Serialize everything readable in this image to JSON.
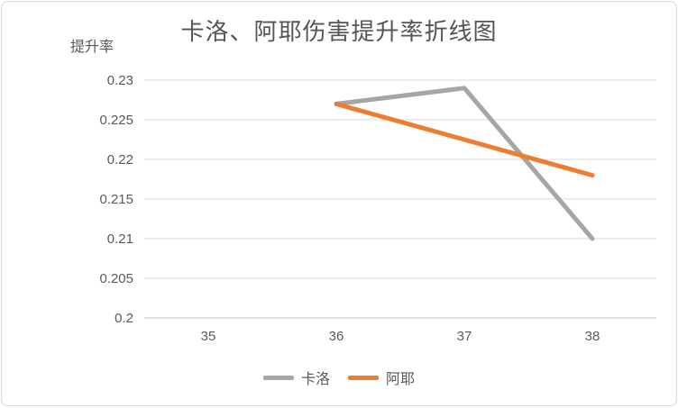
{
  "chart": {
    "colors": {
      "grid": "#d9d9d9",
      "axis": "#bfbfbf",
      "tick_text": "#595959",
      "title_text": "#555555",
      "border": "#d9d9d9",
      "background": "#ffffff"
    }
  },
  "chart_data": {
    "type": "line",
    "title": "卡洛、阿耶伤害提升率折线图",
    "ylabel": "提升率",
    "xlabel": "",
    "xticks": [
      35,
      36,
      37,
      38
    ],
    "yticks": [
      0.2,
      0.205,
      0.21,
      0.215,
      0.22,
      0.225,
      0.23
    ],
    "ylim": [
      0.2,
      0.23
    ],
    "grid": true,
    "legend_position": "bottom",
    "series": [
      {
        "name": "卡洛",
        "color": "#a6a6a6",
        "x": [
          36,
          37,
          38
        ],
        "values": [
          0.227,
          0.229,
          0.21
        ]
      },
      {
        "name": "阿耶",
        "color": "#ed7d31",
        "x": [
          36,
          37,
          38
        ],
        "values": [
          0.227,
          0.2225,
          0.218
        ]
      }
    ]
  }
}
